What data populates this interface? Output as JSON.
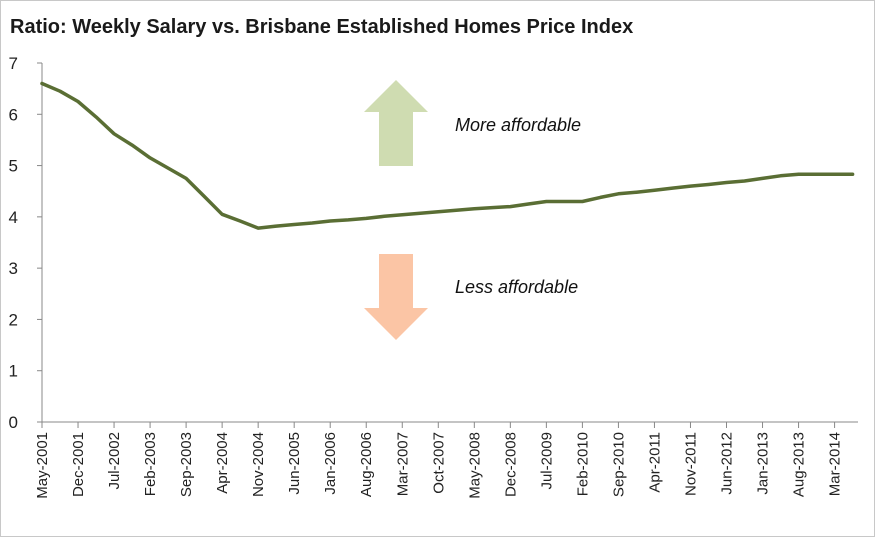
{
  "chart_data": {
    "type": "line",
    "title": "Ratio: Weekly Salary vs. Brisbane Established Homes Price Index",
    "xlabel": "",
    "ylabel": "",
    "ylim": [
      0,
      7
    ],
    "yticks": [
      0,
      1,
      2,
      3,
      4,
      5,
      6,
      7
    ],
    "grid": false,
    "legend": "none",
    "x_tick_labels": [
      "May-2001",
      "Dec-2001",
      "Jul-2002",
      "Feb-2003",
      "Sep-2003",
      "Apr-2004",
      "Nov-2004",
      "Jun-2005",
      "Jan-2006",
      "Aug-2006",
      "Mar-2007",
      "Oct-2007",
      "May-2008",
      "Dec-2008",
      "Jul-2009",
      "Feb-2010",
      "Sep-2010",
      "Apr-2011",
      "Nov-2011",
      "Jun-2012",
      "Jan-2013",
      "Aug-2013",
      "Mar-2014"
    ],
    "series": [
      {
        "color": "#5a6e34",
        "x": [
          0,
          0.5,
          1,
          1.5,
          2,
          2.5,
          3,
          3.5,
          4,
          4.5,
          5,
          5.5,
          6,
          6.5,
          7,
          7.5,
          8,
          8.5,
          9,
          9.5,
          10,
          10.5,
          11,
          11.5,
          12,
          12.5,
          13,
          13.5,
          14,
          14.5,
          15,
          15.5,
          16,
          16.5,
          17,
          17.5,
          18,
          18.5,
          19,
          19.5,
          20,
          20.5,
          21,
          21.5,
          22,
          22.5
        ],
        "values": [
          6.6,
          6.45,
          6.25,
          5.95,
          5.62,
          5.4,
          5.15,
          4.95,
          4.75,
          4.4,
          4.05,
          3.92,
          3.78,
          3.82,
          3.85,
          3.88,
          3.92,
          3.94,
          3.97,
          4.01,
          4.04,
          4.07,
          4.1,
          4.13,
          4.16,
          4.18,
          4.2,
          4.25,
          4.3,
          4.3,
          4.3,
          4.38,
          4.45,
          4.48,
          4.52,
          4.56,
          4.6,
          4.63,
          4.67,
          4.7,
          4.75,
          4.8,
          4.83,
          4.83,
          4.83,
          4.83
        ]
      }
    ],
    "annotations": [
      {
        "text": "More affordable",
        "arrow": "up",
        "arrow_color": "#cfdcb1"
      },
      {
        "text": "Less affordable",
        "arrow": "down",
        "arrow_color": "#fbc5a5"
      }
    ]
  }
}
